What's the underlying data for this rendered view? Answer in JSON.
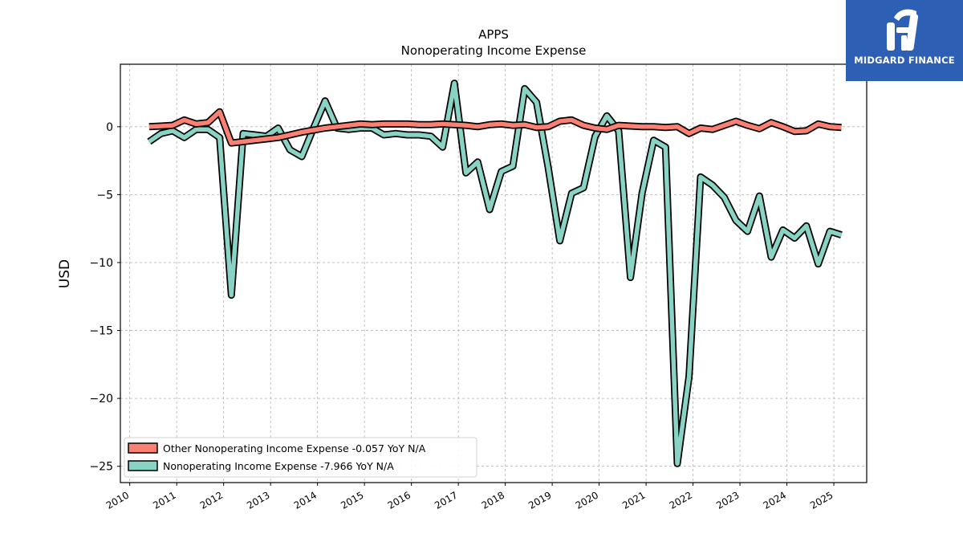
{
  "brand": {
    "name": "MIDGARD FINANCE",
    "bg_color": "#2d5fb4"
  },
  "chart_data": {
    "type": "line",
    "title": "APPS",
    "subtitle": "Nonoperating Income Expense",
    "ylabel": "USD",
    "xlabel": "",
    "xlim": [
      2009.8,
      2025.7
    ],
    "ylim": [
      -26.2,
      4.6
    ],
    "x_ticks": [
      "2010",
      "2011",
      "2012",
      "2013",
      "2014",
      "2015",
      "2016",
      "2017",
      "2018",
      "2019",
      "2020",
      "2021",
      "2022",
      "2023",
      "2024",
      "2025"
    ],
    "y_ticks": [
      0,
      -5,
      -10,
      -15,
      -20,
      -25
    ],
    "y_tick_labels": [
      "0",
      "−5",
      "−10",
      "−15",
      "−20",
      "−25"
    ],
    "grid": true,
    "legend_position": "lower-left",
    "series": [
      {
        "name": "Other Nonoperating Income Expense  -0.057 YoY N/A",
        "color": "#fa8072",
        "points": [
          [
            "2010-06-01",
            0.0
          ],
          [
            "2010-09-01",
            0.05
          ],
          [
            "2010-12-01",
            0.1
          ],
          [
            "2011-03-01",
            0.5
          ],
          [
            "2011-06-01",
            0.2
          ],
          [
            "2011-09-01",
            0.3
          ],
          [
            "2011-12-01",
            1.1
          ],
          [
            "2012-03-01",
            -1.2
          ],
          [
            "2012-06-01",
            -1.1
          ],
          [
            "2012-09-01",
            -1.0
          ],
          [
            "2012-12-01",
            -0.9
          ],
          [
            "2013-03-01",
            -0.8
          ],
          [
            "2013-06-01",
            -0.6
          ],
          [
            "2013-09-01",
            -0.4
          ],
          [
            "2013-12-01",
            -0.25
          ],
          [
            "2014-03-01",
            -0.1
          ],
          [
            "2014-06-01",
            0.0
          ],
          [
            "2014-09-01",
            0.1
          ],
          [
            "2014-12-01",
            0.2
          ],
          [
            "2015-03-01",
            0.15
          ],
          [
            "2015-06-01",
            0.2
          ],
          [
            "2015-09-01",
            0.2
          ],
          [
            "2015-12-01",
            0.2
          ],
          [
            "2016-03-01",
            0.15
          ],
          [
            "2016-06-01",
            0.15
          ],
          [
            "2016-09-01",
            0.2
          ],
          [
            "2016-12-01",
            0.15
          ],
          [
            "2017-03-01",
            0.1
          ],
          [
            "2017-06-01",
            0.0
          ],
          [
            "2017-09-01",
            0.15
          ],
          [
            "2017-12-01",
            0.2
          ],
          [
            "2018-03-01",
            0.1
          ],
          [
            "2018-06-01",
            0.15
          ],
          [
            "2018-09-01",
            -0.05
          ],
          [
            "2018-12-01",
            0.0
          ],
          [
            "2019-03-01",
            0.4
          ],
          [
            "2019-06-01",
            0.5
          ],
          [
            "2019-09-01",
            0.1
          ],
          [
            "2019-12-01",
            -0.1
          ],
          [
            "2020-03-01",
            -0.2
          ],
          [
            "2020-06-01",
            0.1
          ],
          [
            "2020-09-01",
            0.05
          ],
          [
            "2020-12-01",
            0.0
          ],
          [
            "2021-03-01",
            0.0
          ],
          [
            "2021-06-01",
            -0.05
          ],
          [
            "2021-09-01",
            0.0
          ],
          [
            "2021-12-01",
            -0.5
          ],
          [
            "2022-03-01",
            -0.1
          ],
          [
            "2022-06-01",
            -0.2
          ],
          [
            "2022-09-01",
            0.1
          ],
          [
            "2022-12-01",
            0.4
          ],
          [
            "2023-03-01",
            0.1
          ],
          [
            "2023-06-01",
            -0.15
          ],
          [
            "2023-09-01",
            0.3
          ],
          [
            "2023-12-01",
            0.0
          ],
          [
            "2024-03-01",
            -0.35
          ],
          [
            "2024-06-01",
            -0.3
          ],
          [
            "2024-09-01",
            0.2
          ],
          [
            "2024-12-01",
            0.0
          ],
          [
            "2025-03-01",
            -0.057
          ]
        ]
      },
      {
        "name": "Nonoperating Income Expense  -7.966 YoY N/A",
        "color": "#88d3c3",
        "points": [
          [
            "2010-06-01",
            -1.1
          ],
          [
            "2010-09-01",
            -0.5
          ],
          [
            "2010-12-01",
            -0.3
          ],
          [
            "2011-03-01",
            -0.8
          ],
          [
            "2011-06-01",
            -0.2
          ],
          [
            "2011-09-01",
            -0.2
          ],
          [
            "2011-12-01",
            -0.8
          ],
          [
            "2012-03-01",
            -12.4
          ],
          [
            "2012-06-01",
            -0.5
          ],
          [
            "2012-09-01",
            -0.6
          ],
          [
            "2012-12-01",
            -0.7
          ],
          [
            "2013-03-01",
            -0.1
          ],
          [
            "2013-06-01",
            -1.7
          ],
          [
            "2013-09-01",
            -2.2
          ],
          [
            "2013-12-01",
            -0.1
          ],
          [
            "2014-03-01",
            1.9
          ],
          [
            "2014-06-01",
            -0.1
          ],
          [
            "2014-09-01",
            -0.2
          ],
          [
            "2014-12-01",
            -0.1
          ],
          [
            "2015-03-01",
            -0.1
          ],
          [
            "2015-06-01",
            -0.6
          ],
          [
            "2015-09-01",
            -0.5
          ],
          [
            "2015-12-01",
            -0.6
          ],
          [
            "2016-03-01",
            -0.6
          ],
          [
            "2016-06-01",
            -0.7
          ],
          [
            "2016-09-01",
            -1.5
          ],
          [
            "2016-12-01",
            3.2
          ],
          [
            "2017-03-01",
            -3.4
          ],
          [
            "2017-06-01",
            -2.6
          ],
          [
            "2017-09-01",
            -6.1
          ],
          [
            "2017-12-01",
            -3.3
          ],
          [
            "2018-03-01",
            -2.9
          ],
          [
            "2018-06-01",
            2.8
          ],
          [
            "2018-09-01",
            1.8
          ],
          [
            "2018-12-01",
            -3.0
          ],
          [
            "2019-03-01",
            -8.4
          ],
          [
            "2019-06-01",
            -4.9
          ],
          [
            "2019-09-01",
            -4.5
          ],
          [
            "2019-12-01",
            -0.7
          ],
          [
            "2020-03-01",
            0.8
          ],
          [
            "2020-06-01",
            -0.3
          ],
          [
            "2020-09-01",
            -11.1
          ],
          [
            "2020-12-01",
            -4.9
          ],
          [
            "2021-03-01",
            -1.0
          ],
          [
            "2021-06-01",
            -1.5
          ],
          [
            "2021-09-01",
            -24.8
          ],
          [
            "2021-12-01",
            -18.4
          ],
          [
            "2022-03-01",
            -3.7
          ],
          [
            "2022-06-01",
            -4.3
          ],
          [
            "2022-09-01",
            -5.2
          ],
          [
            "2022-12-01",
            -6.9
          ],
          [
            "2023-03-01",
            -7.7
          ],
          [
            "2023-06-01",
            -5.1
          ],
          [
            "2023-09-01",
            -9.6
          ],
          [
            "2023-12-01",
            -7.6
          ],
          [
            "2024-03-01",
            -8.2
          ],
          [
            "2024-06-01",
            -7.3
          ],
          [
            "2024-09-01",
            -10.1
          ],
          [
            "2024-12-01",
            -7.7
          ],
          [
            "2025-03-01",
            -7.966
          ]
        ]
      }
    ]
  }
}
